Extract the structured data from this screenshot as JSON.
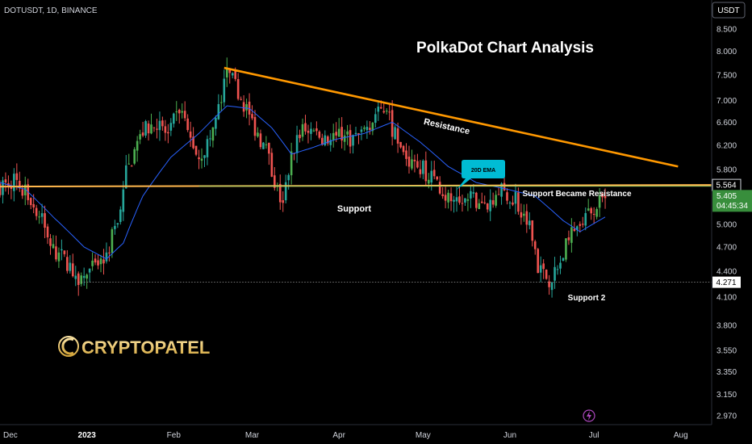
{
  "header": {
    "symbol_line": "DOTUSDT, 1D, BINANCE",
    "currency": "USDT"
  },
  "colors": {
    "bg": "#000000",
    "up": "#26a69a",
    "up_alt": "#4caf50",
    "down": "#ef5350",
    "ema": "#2962ff",
    "trendline": "#ff9800",
    "support_line": "#ffb74d",
    "price_tag": "#388e3c"
  },
  "annotations": {
    "title": "PolkaDot Chart Analysis",
    "resistance": "Resistance",
    "support": "Support",
    "support_became_resistance": "Support Became Resistance",
    "ema_label": "20D EMA",
    "support_2": "Support 2"
  },
  "watermark": {
    "brand": "CRYPTOPATEL"
  },
  "price_tags": {
    "line_level": "5.564",
    "last_price": "5.405",
    "countdown": "04:45:34",
    "support2_level": "4.271"
  },
  "chart_data": {
    "type": "candlestick",
    "symbol": "DOTUSDT",
    "timeframe": "1D",
    "exchange": "BINANCE",
    "y_axis": {
      "scale": "log",
      "range": [
        2.9,
        9.2
      ],
      "ticks": [
        "8.500",
        "8.000",
        "7.500",
        "7.000",
        "6.600",
        "6.200",
        "5.800",
        "5.000",
        "4.700",
        "4.400",
        "4.100",
        "3.800",
        "3.550",
        "3.350",
        "3.150",
        "2.970"
      ]
    },
    "x_axis": {
      "range": [
        "2022-12-01",
        "2023-08-12"
      ],
      "ticks": [
        {
          "date": "2022-12-01",
          "label": "Dec"
        },
        {
          "date": "2023-01-01",
          "label": "2023"
        },
        {
          "date": "2023-02-01",
          "label": "Feb"
        },
        {
          "date": "2023-03-01",
          "label": "Mar"
        },
        {
          "date": "2023-04-01",
          "label": "Apr"
        },
        {
          "date": "2023-05-01",
          "label": "May"
        },
        {
          "date": "2023-06-01",
          "label": "Jun"
        },
        {
          "date": "2023-07-01",
          "label": "Jul"
        },
        {
          "date": "2023-08-01",
          "label": "Aug"
        }
      ]
    },
    "close_path": [
      [
        "2022-12-01",
        5.55
      ],
      [
        "2022-12-06",
        5.65
      ],
      [
        "2022-12-12",
        5.35
      ],
      [
        "2022-12-16",
        5.05
      ],
      [
        "2022-12-20",
        4.65
      ],
      [
        "2022-12-24",
        4.55
      ],
      [
        "2022-12-28",
        4.35
      ],
      [
        "2022-12-31",
        4.33
      ],
      [
        "2023-01-03",
        4.42
      ],
      [
        "2023-01-08",
        4.6
      ],
      [
        "2023-01-12",
        5.05
      ],
      [
        "2023-01-15",
        5.75
      ],
      [
        "2023-01-21",
        6.45
      ],
      [
        "2023-01-26",
        6.6
      ],
      [
        "2023-01-30",
        6.35
      ],
      [
        "2023-02-03",
        6.85
      ],
      [
        "2023-02-06",
        6.4
      ],
      [
        "2023-02-10",
        6.0
      ],
      [
        "2023-02-14",
        6.3
      ],
      [
        "2023-02-18",
        7.0
      ],
      [
        "2023-02-20",
        7.55
      ],
      [
        "2023-02-24",
        7.2
      ],
      [
        "2023-02-28",
        6.7
      ],
      [
        "2023-03-03",
        6.4
      ],
      [
        "2023-03-06",
        6.1
      ],
      [
        "2023-03-10",
        5.45
      ],
      [
        "2023-03-12",
        5.3
      ],
      [
        "2023-03-15",
        6.0
      ],
      [
        "2023-03-19",
        6.55
      ],
      [
        "2023-03-24",
        6.4
      ],
      [
        "2023-03-28",
        6.3
      ],
      [
        "2023-04-03",
        6.35
      ],
      [
        "2023-04-07",
        6.3
      ],
      [
        "2023-04-12",
        6.6
      ],
      [
        "2023-04-16",
        6.8
      ],
      [
        "2023-04-18",
        6.9
      ],
      [
        "2023-04-20",
        6.5
      ],
      [
        "2023-04-23",
        6.1
      ],
      [
        "2023-04-27",
        5.9
      ],
      [
        "2023-05-01",
        5.8
      ],
      [
        "2023-05-05",
        5.65
      ],
      [
        "2023-05-07",
        5.55
      ],
      [
        "2023-05-09",
        5.4
      ],
      [
        "2023-05-12",
        5.25
      ],
      [
        "2023-05-18",
        5.35
      ],
      [
        "2023-05-25",
        5.3
      ],
      [
        "2023-05-28",
        5.5
      ],
      [
        "2023-05-31",
        5.4
      ],
      [
        "2023-06-03",
        5.35
      ],
      [
        "2023-06-06",
        5.1
      ],
      [
        "2023-06-09",
        4.9
      ],
      [
        "2023-06-11",
        4.45
      ],
      [
        "2023-06-15",
        4.3
      ],
      [
        "2023-06-18",
        4.4
      ],
      [
        "2023-06-22",
        4.8
      ],
      [
        "2023-06-26",
        5.1
      ],
      [
        "2023-06-30",
        5.15
      ],
      [
        "2023-07-03",
        5.3
      ],
      [
        "2023-07-05",
        5.405
      ]
    ],
    "ema20_path": [
      [
        "2022-12-01",
        5.6
      ],
      [
        "2022-12-10",
        5.5
      ],
      [
        "2022-12-20",
        5.1
      ],
      [
        "2022-12-31",
        4.7
      ],
      [
        "2023-01-08",
        4.55
      ],
      [
        "2023-01-14",
        4.75
      ],
      [
        "2023-01-21",
        5.4
      ],
      [
        "2023-01-31",
        6.0
      ],
      [
        "2023-02-10",
        6.4
      ],
      [
        "2023-02-20",
        6.9
      ],
      [
        "2023-02-28",
        6.85
      ],
      [
        "2023-03-08",
        6.5
      ],
      [
        "2023-03-15",
        6.05
      ],
      [
        "2023-03-22",
        6.15
      ],
      [
        "2023-03-31",
        6.3
      ],
      [
        "2023-04-10",
        6.4
      ],
      [
        "2023-04-20",
        6.6
      ],
      [
        "2023-04-30",
        6.25
      ],
      [
        "2023-05-10",
        5.85
      ],
      [
        "2023-05-20",
        5.6
      ],
      [
        "2023-05-31",
        5.5
      ],
      [
        "2023-06-10",
        5.4
      ],
      [
        "2023-06-20",
        5.05
      ],
      [
        "2023-06-26",
        4.9
      ],
      [
        "2023-07-05",
        5.1
      ]
    ],
    "lines": {
      "resistance": {
        "from": [
          "2023-02-19",
          7.65
        ],
        "to": [
          "2023-07-31",
          5.85
        ]
      },
      "support_became_resistance": {
        "from": [
          "2022-12-01",
          5.54
        ],
        "to": [
          "2023-08-12",
          5.564
        ]
      },
      "support_2": 4.271
    }
  }
}
